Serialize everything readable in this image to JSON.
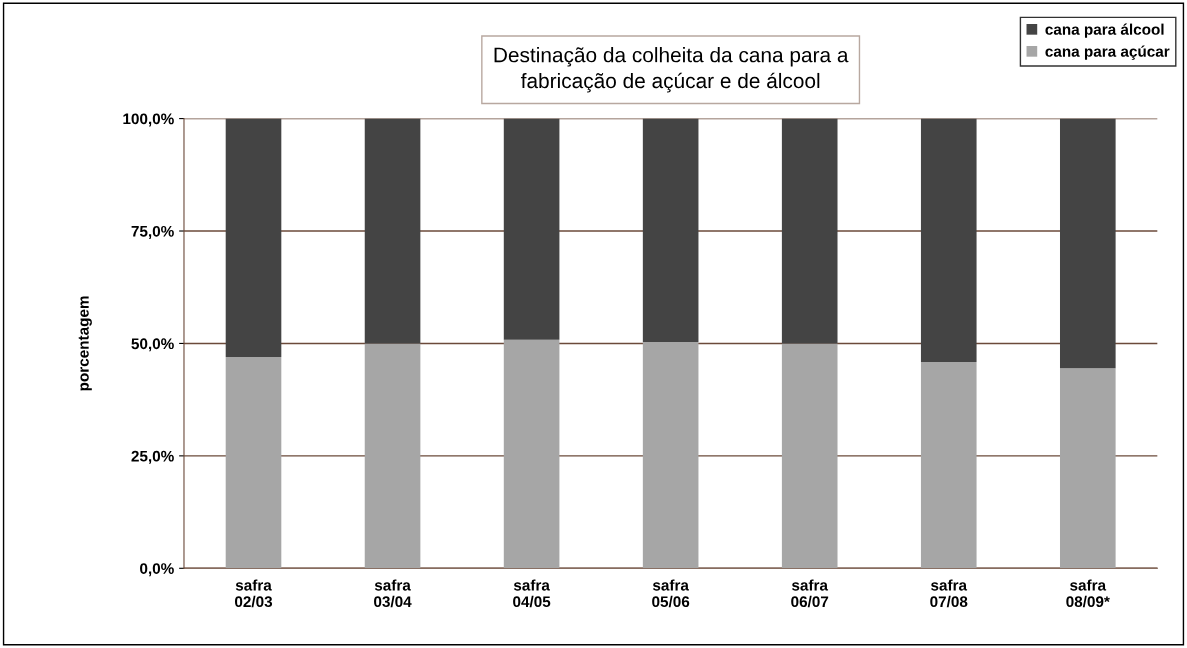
{
  "chart_data": {
    "type": "bar",
    "stacked": true,
    "title": "Destinação da colheita da cana para a\nfabricação de açúcar e de álcool",
    "ylabel": "porcentagem",
    "categories": [
      "safra\n02/03",
      "safra\n03/04",
      "safra\n04/05",
      "safra\n05/06",
      "safra\n06/07",
      "safra\n07/08",
      "safra\n08/09*"
    ],
    "series": [
      {
        "name": "cana para açúcar",
        "color": "#a6a6a6",
        "values": [
          47.0,
          50.0,
          50.8,
          50.3,
          50.0,
          45.9,
          44.5
        ]
      },
      {
        "name": "cana para álcool",
        "color": "#444444",
        "values": [
          53.0,
          50.0,
          49.2,
          49.7,
          50.0,
          54.1,
          55.5
        ]
      }
    ],
    "ylim": [
      0,
      100
    ],
    "yticks": [
      {
        "value": 0,
        "label": "0,0%"
      },
      {
        "value": 25,
        "label": "25,0%"
      },
      {
        "value": 50,
        "label": "50,0%"
      },
      {
        "value": 75,
        "label": "75,0%"
      },
      {
        "value": 100,
        "label": "100,0%"
      }
    ],
    "grid": "y",
    "legend": "top right"
  }
}
